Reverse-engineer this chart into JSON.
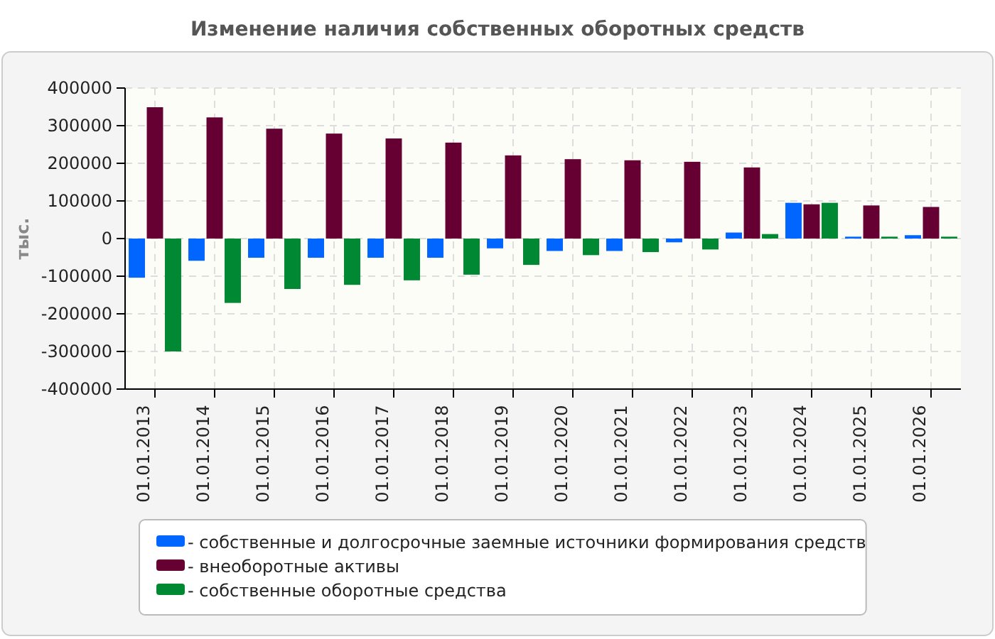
{
  "chart_data": {
    "type": "bar",
    "title": "Изменение наличия собственных оборотных средств",
    "ylabel": "тыс.",
    "categories": [
      "01.01.2013",
      "01.01.2014",
      "01.01.2015",
      "01.01.2016",
      "01.01.2017",
      "01.01.2018",
      "01.01.2019",
      "01.01.2020",
      "01.01.2021",
      "01.01.2022",
      "01.01.2023",
      "01.01.2024",
      "01.01.2025",
      "01.01.2026"
    ],
    "series": [
      {
        "name": "- собственные и долгосрочные заемные источники формирования средств",
        "color": "#0066ff",
        "values": [
          -104000,
          -59000,
          -51000,
          -51000,
          -51000,
          -51000,
          -26000,
          -33000,
          -33000,
          -10000,
          16000,
          95000,
          5000,
          9000
        ]
      },
      {
        "name": "- внеоборотные активы",
        "color": "#660033",
        "values": [
          349000,
          322000,
          292000,
          279000,
          266000,
          255000,
          221000,
          211000,
          208000,
          204000,
          189000,
          91000,
          88000,
          84000
        ]
      },
      {
        "name": "- собственные оборотные средства",
        "color": "#008833",
        "values": [
          -300000,
          -171000,
          -134000,
          -123000,
          -111000,
          -96000,
          -70000,
          -44000,
          -36000,
          -29000,
          12000,
          95000,
          5000,
          5000
        ]
      }
    ],
    "ylim": [
      -400000,
      400000
    ],
    "yticks": [
      -400000,
      -300000,
      -200000,
      -100000,
      0,
      100000,
      200000,
      300000,
      400000
    ],
    "grid": true,
    "legend": "bottom"
  }
}
